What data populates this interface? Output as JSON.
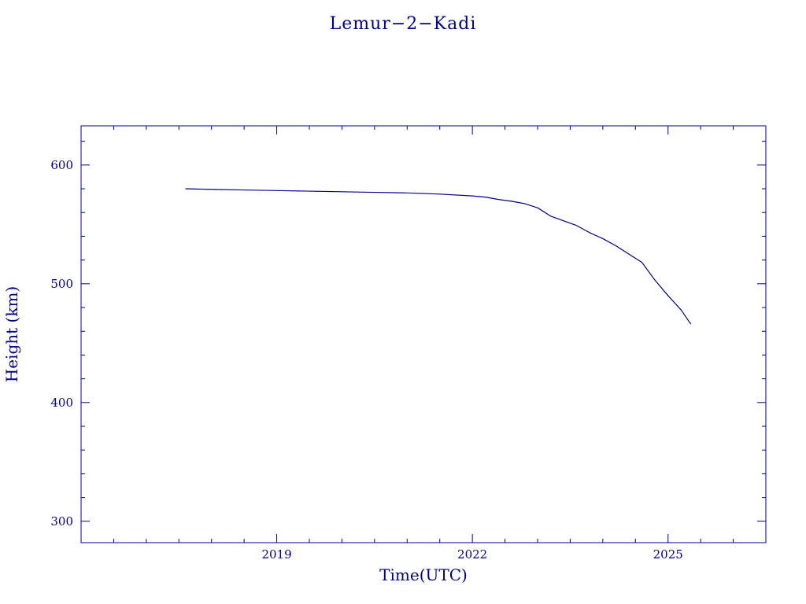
{
  "colors": {
    "ink": "#00008b",
    "background": "#ffffff"
  },
  "chart_data": {
    "type": "line",
    "title": "Lemur−2−Kadi",
    "xlabel": "Time(UTC)",
    "ylabel": "Height (km)",
    "x_unit": "year",
    "xlim": [
      2016.0,
      2026.5
    ],
    "ylim": [
      282,
      633
    ],
    "x_ticks": [
      2019,
      2022,
      2025
    ],
    "x_tick_labels": [
      "2019",
      "2022",
      "2025"
    ],
    "x_minor_step": 0.5,
    "y_ticks": [
      300,
      400,
      500,
      600
    ],
    "y_tick_labels": [
      "300",
      "400",
      "500",
      "600"
    ],
    "y_minor_step": 20,
    "grid": false,
    "legend": "none",
    "series": [
      {
        "x": [
          2017.6,
          2018.0,
          2018.5,
          2019.0,
          2019.5,
          2020.0,
          2020.5,
          2021.0,
          2021.5,
          2022.0,
          2022.2,
          2022.4,
          2022.6,
          2022.8,
          2023.0,
          2023.2,
          2023.4,
          2023.6,
          2023.8,
          2024.0,
          2024.2,
          2024.4,
          2024.6,
          2024.8,
          2025.0,
          2025.2,
          2025.35
        ],
        "y": [
          580,
          579.5,
          579,
          578.5,
          578,
          577.5,
          577,
          576.5,
          575.5,
          574,
          573,
          571,
          569.5,
          567.5,
          564,
          557,
          553,
          549,
          543,
          538,
          532,
          525,
          518,
          503,
          490,
          478,
          466
        ]
      }
    ]
  }
}
